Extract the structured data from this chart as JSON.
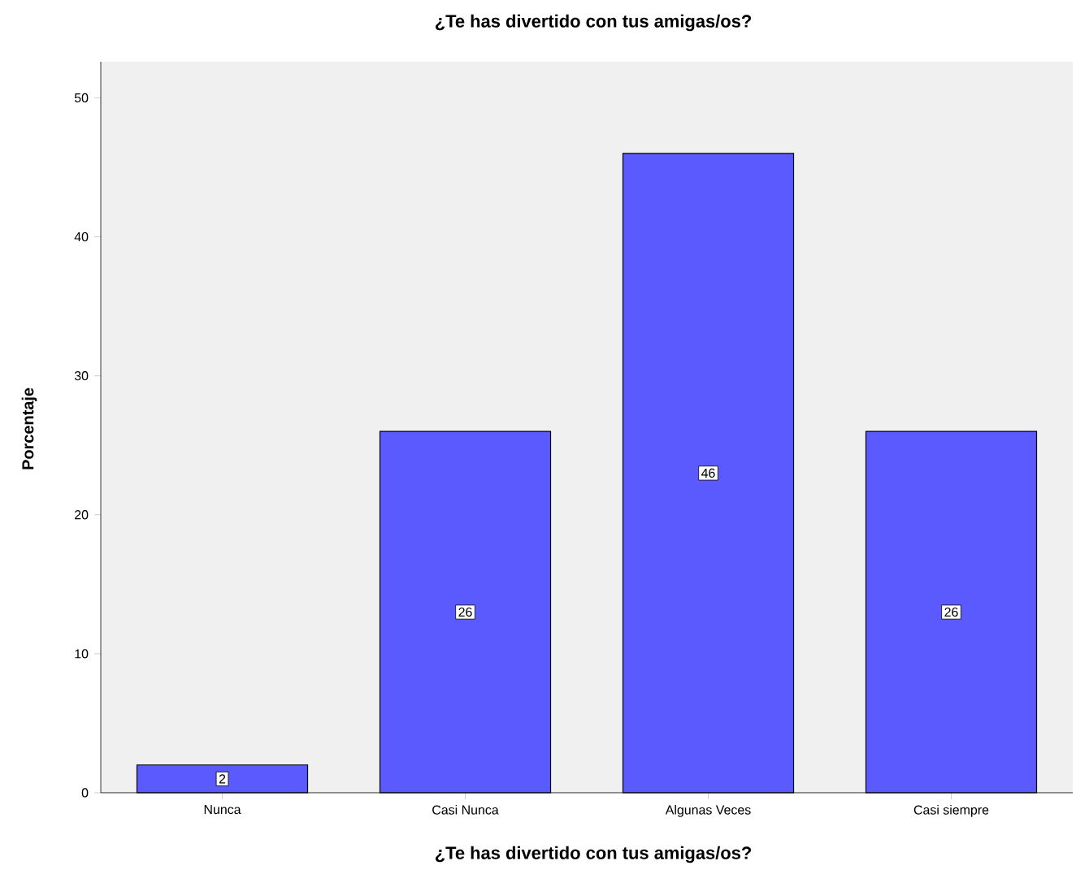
{
  "chart_data": {
    "type": "bar",
    "title": "¿Te has divertido con tus amigas/os?",
    "xlabel": "¿Te has divertido con tus amigas/os?",
    "ylabel": "Porcentaje",
    "categories": [
      "Nunca",
      "Casi Nunca",
      "Algunas Veces",
      "Casi siempre"
    ],
    "values": [
      2,
      26,
      46,
      26
    ],
    "color": "#5a5aff",
    "ylim": [
      0,
      52.6
    ],
    "yticks": [
      0,
      10,
      20,
      30,
      40,
      50
    ],
    "data_labels": true
  }
}
